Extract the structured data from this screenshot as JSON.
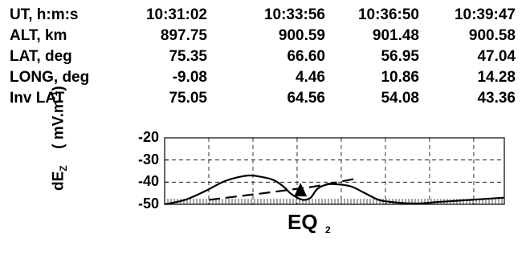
{
  "table": {
    "rows": [
      {
        "label": "UT, h:m:s",
        "values": [
          "10:31:02",
          "10:33:56",
          "10:36:50",
          "10:39:47"
        ]
      },
      {
        "label": "ALT, km",
        "values": [
          "897.75",
          "900.59",
          "901.48",
          "900.58"
        ]
      },
      {
        "label": "LAT, deg",
        "values": [
          "75.35",
          "66.60",
          "56.95",
          "47.04"
        ]
      },
      {
        "label": "LONG, deg",
        "values": [
          "-9.08",
          "4.46",
          "10.86",
          "14.28"
        ]
      },
      {
        "label": "Inv LAT",
        "values": [
          "75.05",
          "64.56",
          "54.08",
          "43.36"
        ]
      }
    ]
  },
  "chart_data": {
    "type": "line",
    "ylabel_main": "dE",
    "ylabel_sub": "Z",
    "ylabel_units": "( mV.m",
    "ylabel_exp": "-1",
    "ylabel_close": ")",
    "ylim": [
      -50,
      -20
    ],
    "yticks": [
      "-20",
      "-30",
      "-40",
      "-50"
    ],
    "annotation": {
      "text": "EQ",
      "sub": "2"
    },
    "series": [
      {
        "style": "solid",
        "x": [
          0,
          0.06,
          0.12,
          0.17,
          0.21,
          0.25,
          0.28,
          0.32,
          0.35,
          0.37,
          0.39,
          0.41,
          0.43,
          0.45,
          0.48,
          0.51,
          0.55,
          0.59,
          0.63,
          0.67,
          0.71,
          0.75,
          0.8,
          0.85,
          0.9,
          0.95,
          1.0
        ],
        "y": [
          -50,
          -48,
          -44,
          -40,
          -38,
          -37,
          -37.5,
          -39,
          -42,
          -45,
          -47,
          -48,
          -47,
          -43,
          -41,
          -41,
          -42,
          -45,
          -48,
          -49,
          -49.5,
          -49.6,
          -49,
          -48.5,
          -48,
          -47.5,
          -47
        ]
      },
      {
        "style": "dashed",
        "x": [
          0.13,
          0.29,
          0.44,
          0.56
        ],
        "y": [
          -48,
          -45,
          -42,
          -38.5
        ]
      }
    ],
    "marker": {
      "shape": "triangle",
      "x": 0.4,
      "y": -45
    }
  }
}
